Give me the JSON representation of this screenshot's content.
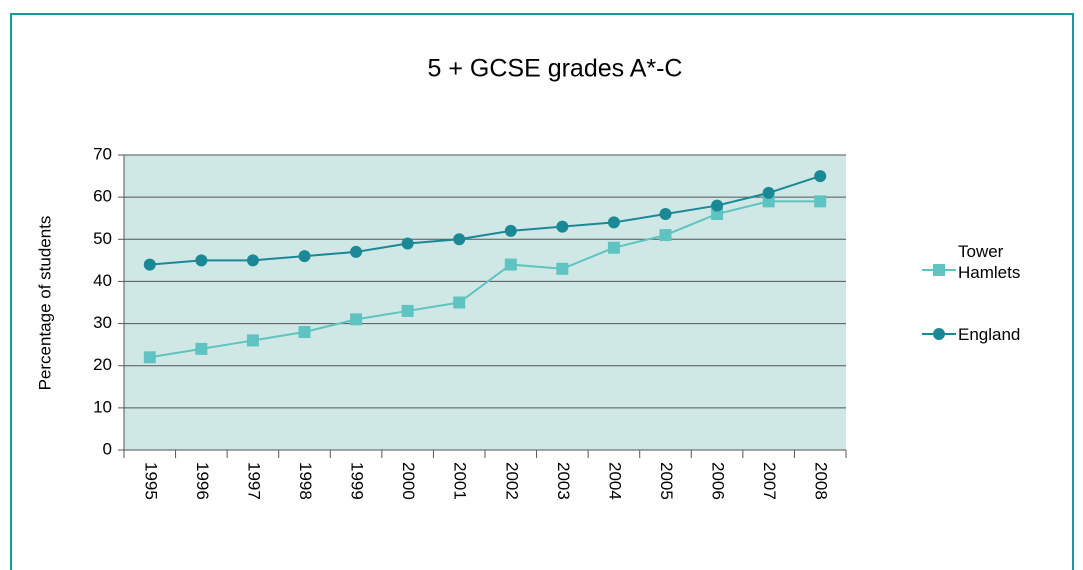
{
  "chart_data": {
    "type": "line",
    "title": "5 + GCSE grades A*-C",
    "y_label": "Percentage of students",
    "categories": [
      "1995",
      "1996",
      "1997",
      "1998",
      "1999",
      "2000",
      "2001",
      "2002",
      "2003",
      "2004",
      "2005",
      "2006",
      "2007",
      "2008"
    ],
    "series": [
      {
        "name": "Tower Hamlets",
        "color": "#5fc3c1",
        "marker": "square",
        "values": [
          22,
          24,
          26,
          28,
          31,
          33,
          35,
          44,
          43,
          48,
          51,
          56,
          59,
          59
        ]
      },
      {
        "name": "England",
        "color": "#1b8896",
        "marker": "circle",
        "values": [
          44,
          45,
          45,
          46,
          47,
          49,
          50,
          52,
          53,
          54,
          56,
          58,
          61,
          65
        ]
      }
    ],
    "ylim": [
      0,
      70
    ],
    "yticks": [
      0,
      10,
      20,
      30,
      40,
      50,
      60,
      70
    ],
    "grid": true
  }
}
